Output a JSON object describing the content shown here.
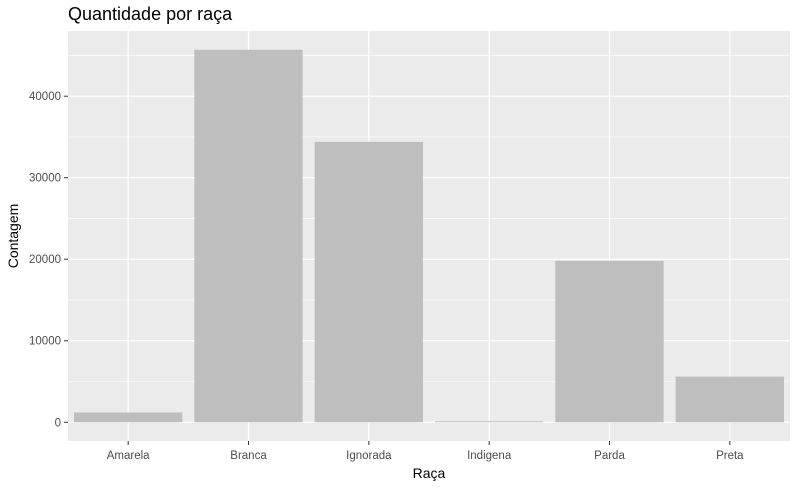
{
  "chart_data": {
    "type": "bar",
    "title": "Quantidade por raça",
    "xlabel": "Raça",
    "ylabel": "Contagem",
    "categories": [
      "Amarela",
      "Branca",
      "Ignorada",
      "Indigena",
      "Parda",
      "Preta"
    ],
    "values": [
      1200,
      45700,
      34400,
      120,
      19800,
      5600
    ],
    "ylim": [
      -2300,
      48000
    ],
    "yticks": [
      0,
      10000,
      20000,
      30000,
      40000
    ],
    "ytick_labels": [
      "0",
      "10000",
      "20000",
      "30000",
      "40000"
    ],
    "grid": true,
    "legend": "none",
    "colors": {
      "panel": "#ebebeb",
      "grid_major": "#ffffff",
      "bar": "#bebebe",
      "tick": "#4d4d4d",
      "text": "#000000"
    }
  }
}
